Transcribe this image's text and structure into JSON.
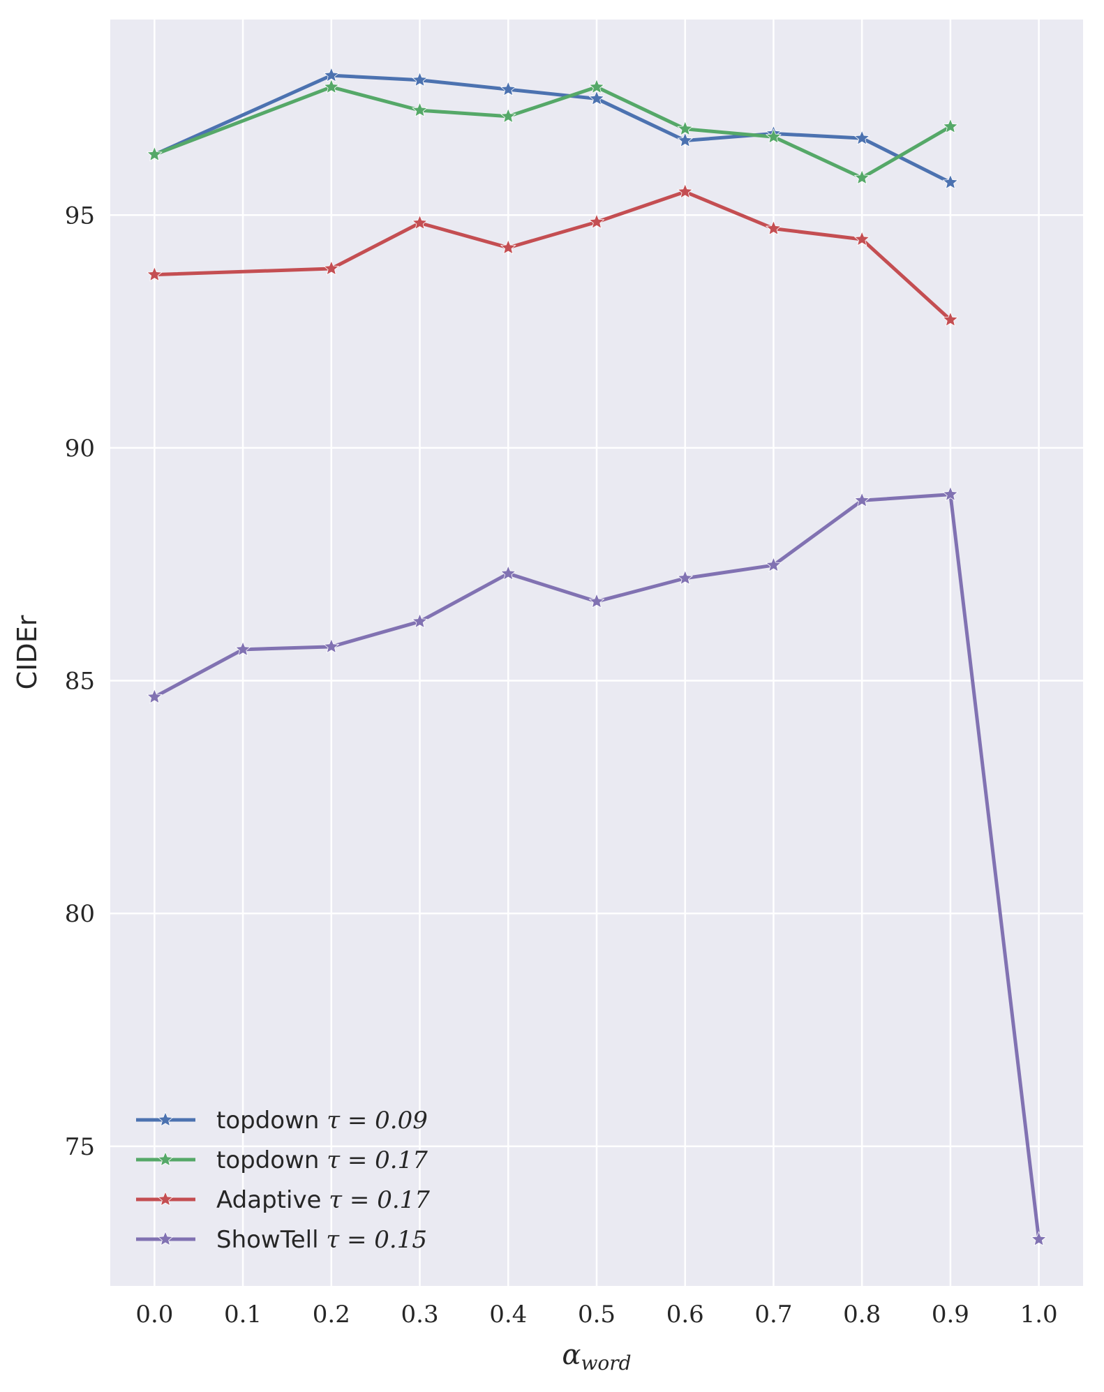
{
  "chart_data": {
    "type": "line",
    "title": "",
    "xlabel": "α",
    "xlabel_subscript": "word",
    "ylabel": "CIDEr",
    "xlim": [
      -0.05,
      1.05
    ],
    "ylim": [
      72.0,
      99.2
    ],
    "xticks": [
      "0.0",
      "0.1",
      "0.2",
      "0.3",
      "0.4",
      "0.5",
      "0.6",
      "0.7",
      "0.8",
      "0.9",
      "1.0"
    ],
    "yticks": [
      "75",
      "80",
      "85",
      "90",
      "95"
    ],
    "grid": true,
    "legend_position": "bottom-left",
    "series": [
      {
        "name": "topdown",
        "tau": "τ = 0.09",
        "color": "#4c72b0",
        "x": [
          0.0,
          0.2,
          0.3,
          0.4,
          0.5,
          0.6,
          0.7,
          0.8,
          0.9
        ],
        "y": [
          96.3,
          98.0,
          97.9,
          97.7,
          97.5,
          96.6,
          96.75,
          96.65,
          95.7
        ]
      },
      {
        "name": "topdown",
        "tau": "τ = 0.17",
        "color": "#55a868",
        "x": [
          0.0,
          0.2,
          0.3,
          0.4,
          0.5,
          0.6,
          0.7,
          0.8,
          0.9
        ],
        "y": [
          96.3,
          97.75,
          97.25,
          97.12,
          97.75,
          96.85,
          96.68,
          95.8,
          96.9
        ]
      },
      {
        "name": "Adaptive",
        "tau": "τ = 0.17",
        "color": "#c44e52",
        "x": [
          0.0,
          0.2,
          0.3,
          0.4,
          0.5,
          0.6,
          0.7,
          0.8,
          0.9
        ],
        "y": [
          93.72,
          93.85,
          94.83,
          94.3,
          94.85,
          95.5,
          94.71,
          94.48,
          92.75
        ]
      },
      {
        "name": "ShowTell",
        "tau": "τ = 0.15",
        "color": "#8172b2",
        "x": [
          0.0,
          0.1,
          0.2,
          0.3,
          0.4,
          0.5,
          0.6,
          0.7,
          0.8,
          0.9,
          1.0
        ],
        "y": [
          84.65,
          85.67,
          85.73,
          86.27,
          87.3,
          86.7,
          87.2,
          87.48,
          88.87,
          89.0,
          73.0
        ]
      }
    ]
  }
}
